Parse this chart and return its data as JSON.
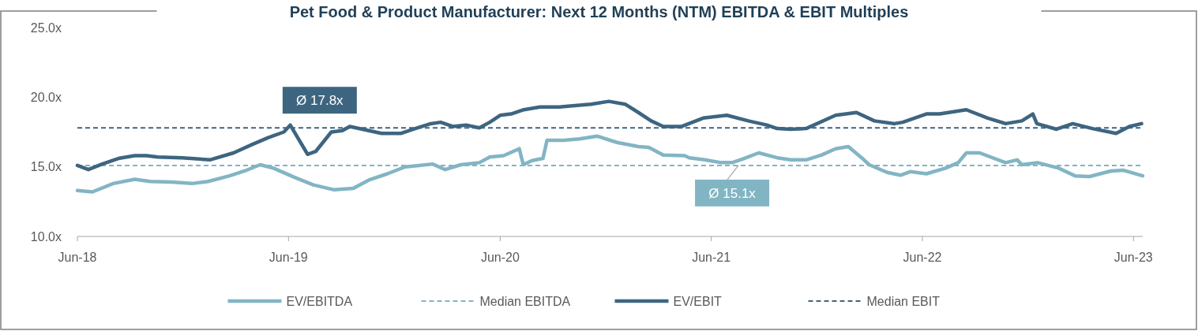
{
  "chart_data": {
    "type": "line",
    "title": "Pet Food & Product Manufacturer: Next 12 Months (NTM) EBITDA & EBIT Multiples",
    "xlim": [
      "2018-06-01",
      "2023-06-17"
    ],
    "xticks": [
      {
        "value": "2018-06-01",
        "label": "Jun-18"
      },
      {
        "value": "2019-06-01",
        "label": "Jun-19"
      },
      {
        "value": "2020-06-01",
        "label": "Jun-20"
      },
      {
        "value": "2021-06-01",
        "label": "Jun-21"
      },
      {
        "value": "2022-06-01",
        "label": "Jun-22"
      },
      {
        "value": "2023-06-01",
        "label": "Jun-23"
      }
    ],
    "ylim": [
      10,
      25
    ],
    "yticks": [
      {
        "value": 10,
        "label": "10.0x"
      },
      {
        "value": 15,
        "label": "15.0x"
      },
      {
        "value": 20,
        "label": "20.0x"
      },
      {
        "value": 25,
        "label": "25.0x"
      }
    ],
    "grid": false,
    "legend": "bottom",
    "line_style": "solid",
    "marker": "none",
    "series": [
      {
        "name": "EV/EBITDA",
        "color": "#82b5c4",
        "x": [
          "2018-06-01",
          "2018-06-27",
          "2018-08-02",
          "2018-09-08",
          "2018-10-05",
          "2018-11-11",
          "2018-12-16",
          "2019-01-13",
          "2019-02-19",
          "2019-03-17",
          "2019-04-13",
          "2019-05-06",
          "2019-06-11",
          "2019-07-14",
          "2019-08-19",
          "2019-09-21",
          "2019-10-18",
          "2019-11-19",
          "2019-12-20",
          "2020-01-13",
          "2020-02-05",
          "2020-02-27",
          "2020-03-25",
          "2020-04-26",
          "2020-05-14",
          "2020-06-07",
          "2020-07-04",
          "2020-07-11",
          "2020-07-26",
          "2020-08-14",
          "2020-08-21",
          "2020-09-19",
          "2020-10-16",
          "2020-11-16",
          "2020-12-20",
          "2021-01-26",
          "2021-02-13",
          "2021-03-10",
          "2021-04-16",
          "2021-04-24",
          "2021-05-21",
          "2021-06-18",
          "2021-07-07",
          "2021-07-25",
          "2021-08-22",
          "2021-09-23",
          "2021-10-16",
          "2021-11-12",
          "2021-12-09",
          "2022-01-02",
          "2022-01-24",
          "2022-02-16",
          "2022-03-01",
          "2022-04-01",
          "2022-04-24",
          "2022-05-11",
          "2022-06-08",
          "2022-07-11",
          "2022-08-02",
          "2022-08-16",
          "2022-09-08",
          "2022-10-23",
          "2022-11-12",
          "2022-11-20",
          "2022-12-17",
          "2023-01-23",
          "2023-02-20",
          "2023-03-17",
          "2023-04-23",
          "2023-05-15",
          "2023-06-17"
        ],
        "values": [
          13.3,
          13.2,
          13.8,
          14.1,
          13.95,
          13.9,
          13.8,
          13.95,
          14.35,
          14.7,
          15.15,
          14.9,
          14.25,
          13.7,
          13.35,
          13.45,
          14.05,
          14.5,
          15.0,
          15.1,
          15.2,
          14.8,
          15.15,
          15.3,
          15.7,
          15.8,
          16.3,
          15.15,
          15.45,
          15.6,
          16.9,
          16.9,
          17.0,
          17.2,
          16.75,
          16.45,
          16.4,
          15.85,
          15.8,
          15.65,
          15.5,
          15.3,
          15.3,
          15.55,
          16.0,
          15.65,
          15.5,
          15.5,
          15.85,
          16.3,
          16.45,
          15.65,
          15.15,
          14.6,
          14.4,
          14.65,
          14.5,
          14.9,
          15.3,
          16.0,
          16.0,
          15.3,
          15.5,
          15.15,
          15.3,
          14.9,
          14.35,
          14.3,
          14.7,
          14.75,
          14.35
        ]
      },
      {
        "name": "Median EBITDA",
        "color": "#82b5c4",
        "line_style": "dashed",
        "x": [
          "2018-06-01",
          "2023-06-17"
        ],
        "values": [
          15.1,
          15.1
        ]
      },
      {
        "name": "EV/EBIT",
        "color": "#3e6580",
        "x": [
          "2018-06-01",
          "2018-06-20",
          "2018-07-14",
          "2018-08-11",
          "2018-09-08",
          "2018-09-28",
          "2018-10-18",
          "2018-11-29",
          "2019-01-16",
          "2019-02-26",
          "2019-03-30",
          "2019-04-27",
          "2019-05-24",
          "2019-06-04",
          "2019-07-04",
          "2019-07-18",
          "2019-08-14",
          "2019-09-02",
          "2019-09-15",
          "2019-11-09",
          "2019-12-12",
          "2020-01-03",
          "2020-02-02",
          "2020-02-19",
          "2020-03-11",
          "2020-04-03",
          "2020-04-26",
          "2020-05-14",
          "2020-06-01",
          "2020-06-20",
          "2020-07-12",
          "2020-08-09",
          "2020-09-11",
          "2020-10-08",
          "2020-11-05",
          "2020-12-06",
          "2021-01-03",
          "2021-01-26",
          "2021-02-17",
          "2021-03-10",
          "2021-04-11",
          "2021-05-18",
          "2021-06-28",
          "2021-08-04",
          "2021-09-05",
          "2021-09-23",
          "2021-10-16",
          "2021-11-12",
          "2022-01-02",
          "2022-02-07",
          "2022-03-10",
          "2022-04-14",
          "2022-04-28",
          "2022-06-08",
          "2022-07-01",
          "2022-08-16",
          "2022-09-22",
          "2022-10-23",
          "2022-11-20",
          "2022-12-09",
          "2022-12-16",
          "2023-01-19",
          "2023-02-16",
          "2023-03-22",
          "2023-05-02",
          "2023-05-25",
          "2023-06-15"
        ],
        "values": [
          15.1,
          14.8,
          15.2,
          15.6,
          15.8,
          15.8,
          15.7,
          15.65,
          15.5,
          16.0,
          16.6,
          17.1,
          17.5,
          18.0,
          15.9,
          16.1,
          17.5,
          17.6,
          17.9,
          17.4,
          17.4,
          17.7,
          18.1,
          18.2,
          17.9,
          18.0,
          17.8,
          18.2,
          18.7,
          18.8,
          19.1,
          19.3,
          19.3,
          19.4,
          19.5,
          19.7,
          19.5,
          18.9,
          18.3,
          17.9,
          17.9,
          18.5,
          18.7,
          18.3,
          18.0,
          17.75,
          17.7,
          17.75,
          18.7,
          18.9,
          18.3,
          18.1,
          18.2,
          18.8,
          18.8,
          19.1,
          18.5,
          18.1,
          18.3,
          18.8,
          18.1,
          17.7,
          18.1,
          17.75,
          17.4,
          17.9,
          18.1
        ]
      },
      {
        "name": "Median EBIT",
        "color": "#3e6580",
        "line_style": "dashed",
        "x": [
          "2018-06-01",
          "2023-06-17"
        ],
        "values": [
          17.8,
          17.8
        ]
      }
    ],
    "annotations": [
      {
        "text": "Ø 17.8x",
        "x": "2019-07-25",
        "y": 17.8
      },
      {
        "text": "Ø 15.1x",
        "x": "2021-07-18",
        "y": 15.1
      }
    ]
  }
}
